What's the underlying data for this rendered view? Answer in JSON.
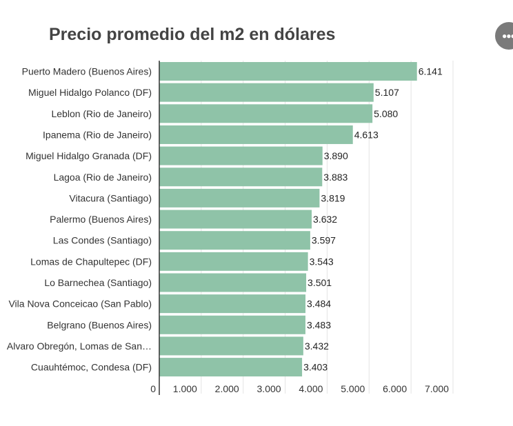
{
  "chart_data": {
    "type": "bar",
    "orientation": "horizontal",
    "title": "Precio promedio del m2 en dólares",
    "xlabel": "",
    "ylabel": "",
    "xlim": [
      0,
      7000
    ],
    "x_ticks": [
      0,
      1000,
      2000,
      3000,
      4000,
      5000,
      6000,
      7000
    ],
    "x_tick_labels": [
      "0",
      "1.000",
      "2.000",
      "3.000",
      "4.000",
      "5.000",
      "6.000",
      "7.000"
    ],
    "grid": true,
    "bar_color": "#8fc3a8",
    "categories": [
      "Puerto Madero (Buenos Aires)",
      "Miguel Hidalgo Polanco (DF)",
      "Leblon (Rio de Janeiro)",
      "Ipanema (Rio de Janeiro)",
      "Miguel Hidalgo Granada (DF)",
      "Lagoa (Rio de Janeiro)",
      "Vitacura (Santiago)",
      "Palermo (Buenos Aires)",
      "Las Condes (Santiago)",
      "Lomas de Chapultepec (DF)",
      "Lo Barnechea (Santiago)",
      "Vila Nova Conceicao (San Pablo)",
      "Belgrano (Buenos Aires)",
      "Alvaro Obregón, Lomas de San…",
      "Cuauhtémoc, Condesa (DF)"
    ],
    "values": [
      6141,
      5107,
      5080,
      4613,
      3890,
      3883,
      3819,
      3632,
      3597,
      3543,
      3501,
      3484,
      3483,
      3432,
      3403
    ],
    "value_labels": [
      "6.141",
      "5.107",
      "5.080",
      "4.613",
      "3.890",
      "3.883",
      "3.819",
      "3.632",
      "3.597",
      "3.543",
      "3.501",
      "3.484",
      "3.483",
      "3.432",
      "3.403"
    ]
  },
  "menu_icon": "more-horizontal-icon"
}
